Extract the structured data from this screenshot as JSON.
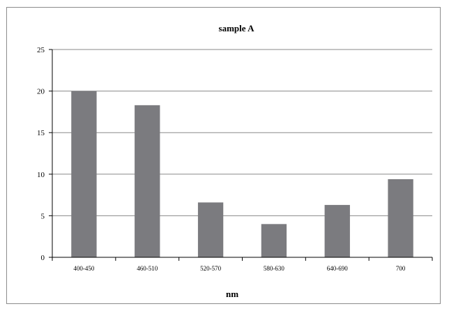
{
  "chart_data": {
    "type": "bar",
    "title": "sample A",
    "xlabel": "nm",
    "ylabel": "",
    "categories": [
      "400-450",
      "460-510",
      "520-570",
      "580-630",
      "640-690",
      "700"
    ],
    "values": [
      20,
      18.3,
      6.6,
      4,
      6.3,
      9.4
    ],
    "ylim": [
      0,
      25
    ],
    "yticks": [
      "0",
      "5",
      "10",
      "15",
      "20",
      "25"
    ],
    "grid": true,
    "legend": "none",
    "bar_color": "#7b7b7f",
    "grid_color": "#8a8a8a"
  }
}
